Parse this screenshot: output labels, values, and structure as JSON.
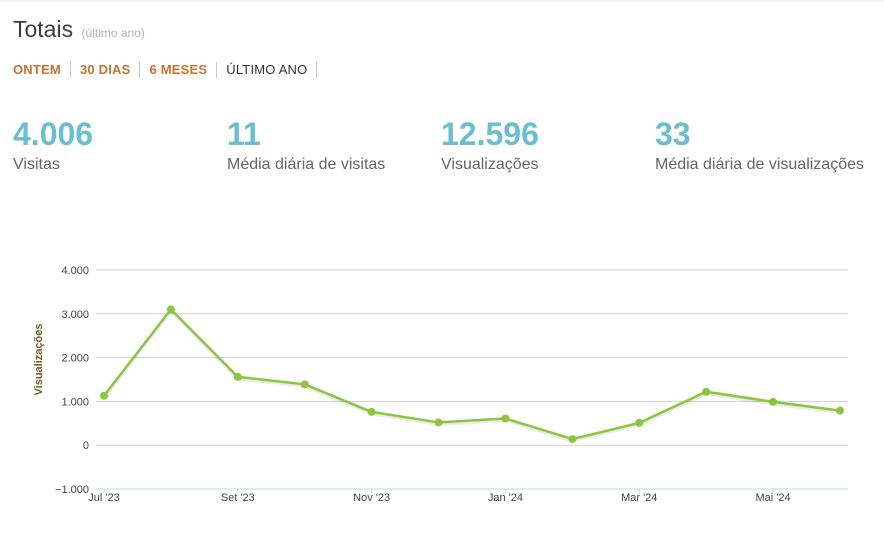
{
  "header": {
    "title": "Totais",
    "subtitle": "(último ano)"
  },
  "periods": [
    {
      "label": "ONTEM",
      "active": false
    },
    {
      "label": "30 DIAS",
      "active": false
    },
    {
      "label": "6 MESES",
      "active": false
    },
    {
      "label": "ÚLTIMO ANO",
      "active": true
    }
  ],
  "stats": [
    {
      "value": "4.006",
      "label": "Visitas"
    },
    {
      "value": "11",
      "label": "Média diária de visitas"
    },
    {
      "value": "12.596",
      "label": "Visualizações"
    },
    {
      "value": "33",
      "label": "Média diária de visualizações"
    }
  ],
  "colors": {
    "accent_link": "#c77232",
    "stat_value": "#69bfd1",
    "line": "#8cc63f",
    "axis_title": "#6b6125"
  },
  "chart_data": {
    "type": "line",
    "title": "",
    "xlabel": "",
    "ylabel": "Visualizações",
    "ylim": [
      -1000,
      4000
    ],
    "yticks": [
      4000,
      3000,
      2000,
      1000,
      0,
      -1000
    ],
    "ytick_labels": [
      "4.000",
      "3.000",
      "2.000",
      "1.000",
      "0",
      "−1.000"
    ],
    "xtick_labels": [
      "Jul '23",
      "Set '23",
      "Nov '23",
      "Jan '24",
      "Mar '24",
      "Mai '24"
    ],
    "xtick_months": [
      0,
      2,
      4,
      6,
      8,
      10
    ],
    "grid": true,
    "series": [
      {
        "values": [
          1130,
          3100,
          1560,
          1390,
          760,
          520,
          610,
          140,
          510,
          1220,
          990,
          790
        ]
      }
    ]
  }
}
